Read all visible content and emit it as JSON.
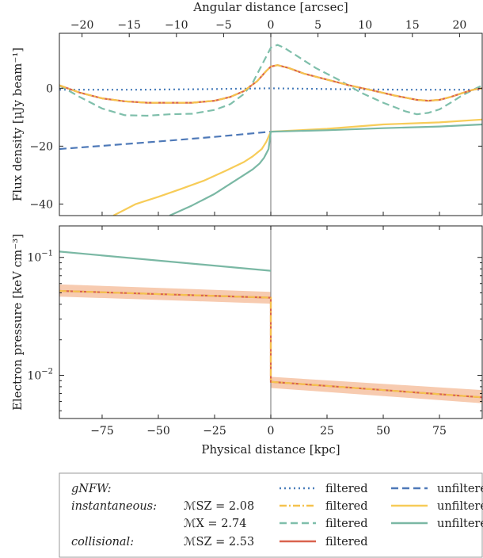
{
  "chart_data": [
    {
      "type": "line",
      "panel": "top",
      "xlabel": "",
      "ylabel": "Flux density [μJy beam⁻¹]",
      "top_xlabel": "Angular distance [arcsec]",
      "xlim": [
        -94,
        94
      ],
      "ylim": [
        -44,
        19
      ],
      "top_xlim_arcsec": [
        -22.4,
        22.4
      ],
      "xticks": [
        -75,
        -50,
        -25,
        0,
        25,
        50,
        75
      ],
      "yticks": [
        0,
        -20,
        -40
      ],
      "top_xticks": [
        -20,
        -15,
        -10,
        -5,
        0,
        5,
        10,
        15,
        20
      ],
      "vline_x": 0,
      "series": [
        {
          "key": "gnfw_filtered",
          "color": "#4a7ebb",
          "dash": "dotted",
          "x": [
            -94,
            -60,
            -30,
            0,
            30,
            60,
            94
          ],
          "y": [
            -0.5,
            -0.5,
            -0.3,
            0,
            -0.3,
            -0.5,
            -0.5
          ]
        },
        {
          "key": "gnfw_unfiltered",
          "color": "#4e79b8",
          "dash": "dashed",
          "x": [
            -94,
            -75,
            -50,
            -25,
            0
          ],
          "y": [
            -21,
            -19.9,
            -18.4,
            -16.8,
            -15
          ]
        },
        {
          "key": "inst_mx_filtered",
          "color": "#7fbfab",
          "dash": "dashed",
          "x": [
            -94,
            -85,
            -75,
            -65,
            -55,
            -45,
            -35,
            -25,
            -18,
            -12,
            -8,
            -4,
            0,
            3,
            6,
            10,
            20,
            30,
            40,
            50,
            60,
            65,
            70,
            75,
            80,
            85,
            90,
            94
          ],
          "y": [
            1,
            -3,
            -7,
            -9.3,
            -9.5,
            -9,
            -8.8,
            -7.5,
            -5.5,
            -2,
            2,
            8,
            14,
            15,
            14,
            12,
            7,
            3,
            -1.5,
            -5,
            -8,
            -9,
            -8.5,
            -7.3,
            -5,
            -2.5,
            -0.5,
            1
          ]
        },
        {
          "key": "inst_msz_filtered",
          "color": "#f5c24e",
          "dash": "dashdot",
          "x": [
            -94,
            -85,
            -75,
            -65,
            -55,
            -45,
            -35,
            -25,
            -18,
            -12,
            -6,
            -2,
            0,
            3,
            8,
            15,
            25,
            35,
            45,
            55,
            65,
            70,
            75,
            80,
            85,
            90,
            94
          ],
          "y": [
            1,
            -1.5,
            -3.5,
            -4.5,
            -5,
            -5,
            -5,
            -4.3,
            -3,
            -1,
            2.5,
            6,
            7.5,
            8,
            7,
            5,
            3,
            1,
            -0.7,
            -2.5,
            -4,
            -4.3,
            -4,
            -3,
            -1.7,
            -0.5,
            0
          ]
        },
        {
          "key": "inst_unfiltered",
          "color": "#f7cc58",
          "dash": "solid",
          "x": [
            -70,
            -60,
            -50,
            -40,
            -30,
            -20,
            -12,
            -8,
            -4,
            -2,
            0,
            25,
            50,
            75,
            94
          ],
          "y": [
            -44,
            -40,
            -37.5,
            -34.8,
            -32,
            -28.5,
            -25.5,
            -23.5,
            -21,
            -18.5,
            -15,
            -14,
            -12.5,
            -11.8,
            -10.8
          ]
        },
        {
          "key": "coll_unfiltered",
          "color": "#7ab8a4",
          "dash": "solid",
          "x": [
            -45,
            -35,
            -25,
            -18,
            -12,
            -8,
            -5,
            -3,
            -1,
            0,
            25,
            50,
            75,
            94
          ],
          "y": [
            -44,
            -40.5,
            -36.5,
            -33,
            -30,
            -28,
            -26,
            -24,
            -21,
            -15,
            -14.5,
            -13.8,
            -13.2,
            -12.5
          ]
        },
        {
          "key": "coll_filtered",
          "color": "#d9634e",
          "dash": "solid",
          "x": [
            -94,
            -85,
            -75,
            -65,
            -55,
            -45,
            -35,
            -25,
            -18,
            -12,
            -6,
            -2,
            0,
            3,
            8,
            15,
            25,
            35,
            45,
            55,
            65,
            70,
            75,
            80,
            85,
            90,
            94
          ],
          "y": [
            1,
            -1.5,
            -3.5,
            -4.5,
            -5,
            -5,
            -5,
            -4.3,
            -3,
            -1,
            2.5,
            6,
            7.5,
            8,
            7,
            5,
            3,
            1,
            -0.7,
            -2.5,
            -4,
            -4.3,
            -4,
            -3,
            -1.7,
            -0.5,
            0
          ]
        }
      ]
    },
    {
      "type": "line",
      "panel": "bottom",
      "xlabel": "Physical distance [kpc]",
      "ylabel": "Electron pressure [keV cm⁻³]",
      "yscale": "log",
      "xlim": [
        -94,
        94
      ],
      "ylim": [
        0.0043,
        0.185
      ],
      "xticks": [
        -75,
        -50,
        -25,
        0,
        25,
        50,
        75
      ],
      "xticklabels": [
        "−75",
        "−50",
        "−25",
        "0",
        "25",
        "50",
        "75"
      ],
      "yticks_major": [
        0.1,
        0.01
      ],
      "ytick_base": "10",
      "ytick_exponents": [
        "−1",
        "−2"
      ],
      "vline_x": 0,
      "band": {
        "color": "#f0a070",
        "x": [
          -94,
          0,
          0.001,
          94
        ],
        "lower": [
          0.0465,
          0.0405,
          0.0078,
          0.0058
        ],
        "upper": [
          0.059,
          0.051,
          0.0097,
          0.0075
        ]
      },
      "series": [
        {
          "key": "coll_unfiltered",
          "color": "#7ab8a4",
          "dash": "solid",
          "x": [
            -94,
            0
          ],
          "y": [
            0.112,
            0.077
          ]
        },
        {
          "key": "coll_filtered",
          "color": "#d9634e",
          "dash": "solid",
          "x": [
            -94,
            0,
            0.001,
            94
          ],
          "y": [
            0.052,
            0.0455,
            0.0088,
            0.0065
          ]
        },
        {
          "key": "inst_msz_filtered",
          "color": "#f5c24e",
          "dash": "dashdot",
          "x": [
            -94,
            0,
            0.001,
            94
          ],
          "y": [
            0.052,
            0.0455,
            0.0088,
            0.0065
          ]
        }
      ]
    }
  ],
  "legend": {
    "rows": [
      {
        "label": "gNFW:",
        "italic": true,
        "mach": "",
        "items": [
          {
            "key": "gnfw_filtered",
            "text": "filtered"
          },
          {
            "key": "gnfw_unfiltered",
            "text": "unfiltered"
          }
        ]
      },
      {
        "label": "instantaneous:",
        "italic": true,
        "mach": "ℳSZ = 2.08",
        "items": [
          {
            "key": "inst_msz_filtered",
            "text": "filtered"
          },
          {
            "key": "inst_unfiltered",
            "text": "unfiltered"
          }
        ]
      },
      {
        "label": "",
        "italic": false,
        "mach": "ℳX = 2.74",
        "items": [
          {
            "key": "inst_mx_filtered",
            "text": "filtered"
          },
          {
            "key": "coll_unfiltered",
            "text": "unfiltered"
          }
        ]
      },
      {
        "label": "collisional:",
        "italic": true,
        "mach": "ℳSZ = 2.53",
        "items": [
          {
            "key": "coll_filtered",
            "text": "filtered"
          }
        ]
      }
    ]
  }
}
